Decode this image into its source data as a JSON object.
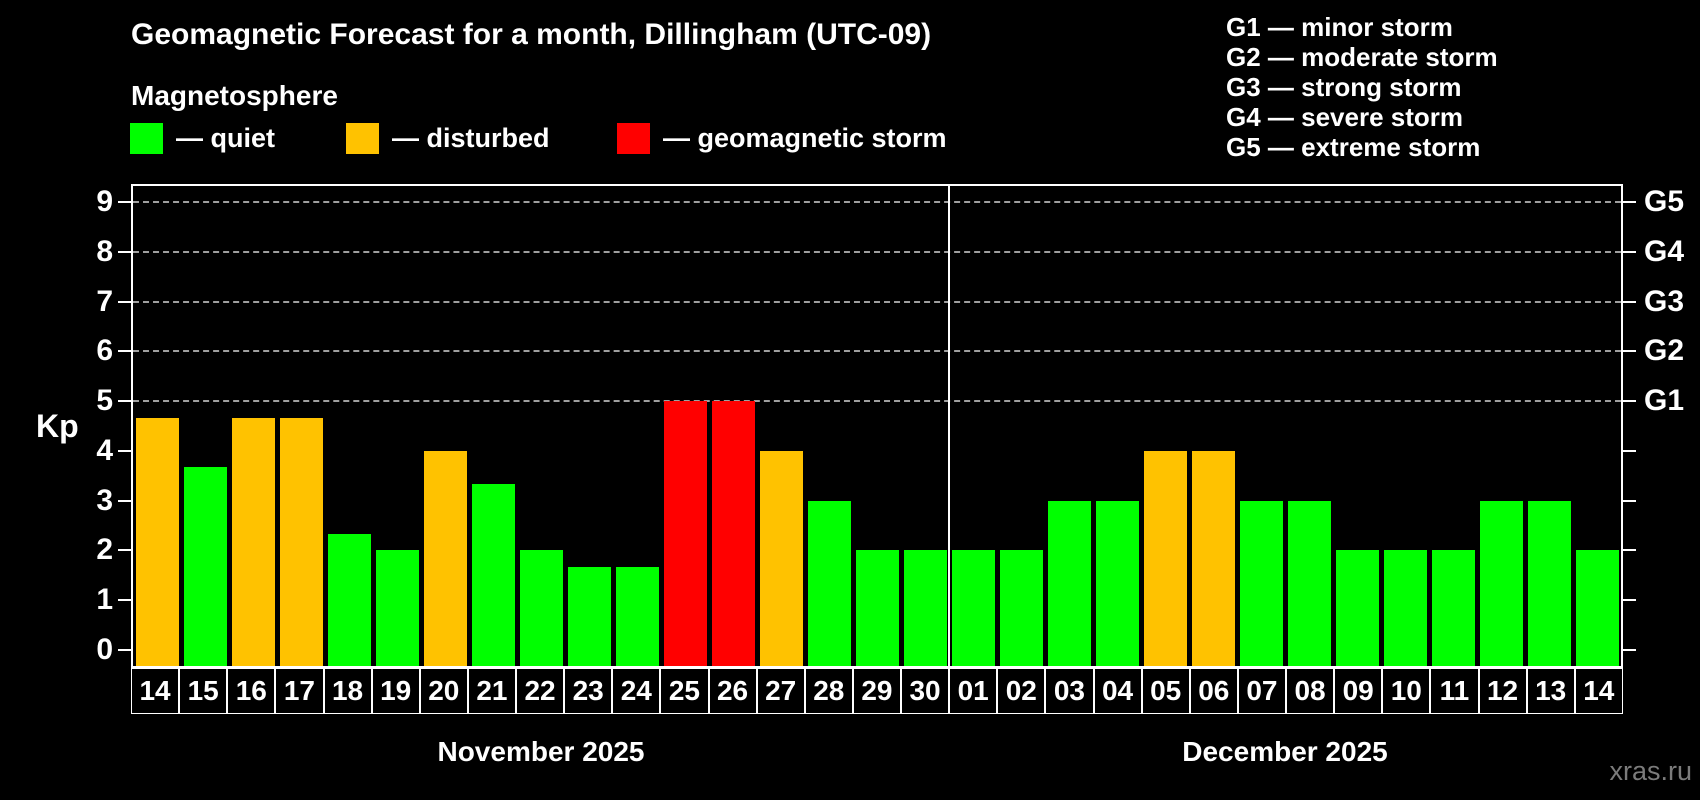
{
  "header": {
    "title": "Geomagnetic Forecast for a month, Dillingham (UTC-09)",
    "subtitle": "Magnetosphere"
  },
  "legend": {
    "items": [
      {
        "label": "— quiet",
        "level": "quiet",
        "color": "#00ff00"
      },
      {
        "label": "— disturbed",
        "level": "disturbed",
        "color": "#ffc200"
      },
      {
        "label": "— geomagnetic storm",
        "level": "storm",
        "color": "#ff0000"
      }
    ]
  },
  "g_legend": {
    "items": [
      {
        "label": "G1 — minor storm"
      },
      {
        "label": "G2 — moderate storm"
      },
      {
        "label": "G3 — strong storm"
      },
      {
        "label": "G4 — severe storm"
      },
      {
        "label": "G5 — extreme storm"
      }
    ]
  },
  "watermark": "xras.ru",
  "chart_data": {
    "type": "bar",
    "title": "Geomagnetic Forecast for a month, Dillingham (UTC-09)",
    "subtitle": "Magnetosphere",
    "ylabel": "Kp",
    "ylim": [
      0,
      9
    ],
    "kp_ticks": [
      0,
      1,
      2,
      3,
      4,
      5,
      6,
      7,
      8,
      9
    ],
    "grid_levels": [
      5,
      6,
      7,
      8,
      9
    ],
    "right_axis": [
      {
        "kp": 5,
        "label": "G1"
      },
      {
        "kp": 6,
        "label": "G2"
      },
      {
        "kp": 7,
        "label": "G3"
      },
      {
        "kp": 8,
        "label": "G4"
      },
      {
        "kp": 9,
        "label": "G5"
      }
    ],
    "level_colors": {
      "quiet": "#00ff00",
      "disturbed": "#ffc200",
      "storm": "#ff0000"
    },
    "legend_position": "top-left",
    "grid": "dashed horizontal at Kp 5-9 only",
    "months": [
      {
        "label": "November 2025",
        "days": [
          {
            "day": "14",
            "kp": 4.67,
            "level": "disturbed"
          },
          {
            "day": "15",
            "kp": 3.67,
            "level": "quiet"
          },
          {
            "day": "16",
            "kp": 4.67,
            "level": "disturbed"
          },
          {
            "day": "17",
            "kp": 4.67,
            "level": "disturbed"
          },
          {
            "day": "18",
            "kp": 2.33,
            "level": "quiet"
          },
          {
            "day": "19",
            "kp": 2,
            "level": "quiet"
          },
          {
            "day": "20",
            "kp": 4,
            "level": "disturbed"
          },
          {
            "day": "21",
            "kp": 3.33,
            "level": "quiet"
          },
          {
            "day": "22",
            "kp": 2,
            "level": "quiet"
          },
          {
            "day": "23",
            "kp": 1.67,
            "level": "quiet"
          },
          {
            "day": "24",
            "kp": 1.67,
            "level": "quiet"
          },
          {
            "day": "25",
            "kp": 5,
            "level": "storm"
          },
          {
            "day": "26",
            "kp": 5,
            "level": "storm"
          },
          {
            "day": "27",
            "kp": 4,
            "level": "disturbed"
          },
          {
            "day": "28",
            "kp": 3,
            "level": "quiet"
          },
          {
            "day": "29",
            "kp": 2,
            "level": "quiet"
          },
          {
            "day": "30",
            "kp": 2,
            "level": "quiet"
          }
        ]
      },
      {
        "label": "December 2025",
        "days": [
          {
            "day": "01",
            "kp": 2,
            "level": "quiet"
          },
          {
            "day": "02",
            "kp": 2,
            "level": "quiet"
          },
          {
            "day": "03",
            "kp": 3,
            "level": "quiet"
          },
          {
            "day": "04",
            "kp": 3,
            "level": "quiet"
          },
          {
            "day": "05",
            "kp": 4,
            "level": "disturbed"
          },
          {
            "day": "06",
            "kp": 4,
            "level": "disturbed"
          },
          {
            "day": "07",
            "kp": 3,
            "level": "quiet"
          },
          {
            "day": "08",
            "kp": 3,
            "level": "quiet"
          },
          {
            "day": "09",
            "kp": 2,
            "level": "quiet"
          },
          {
            "day": "10",
            "kp": 2,
            "level": "quiet"
          },
          {
            "day": "11",
            "kp": 2,
            "level": "quiet"
          },
          {
            "day": "12",
            "kp": 3,
            "level": "quiet"
          },
          {
            "day": "13",
            "kp": 3,
            "level": "quiet"
          },
          {
            "day": "14",
            "kp": 2,
            "level": "quiet"
          }
        ]
      }
    ]
  }
}
